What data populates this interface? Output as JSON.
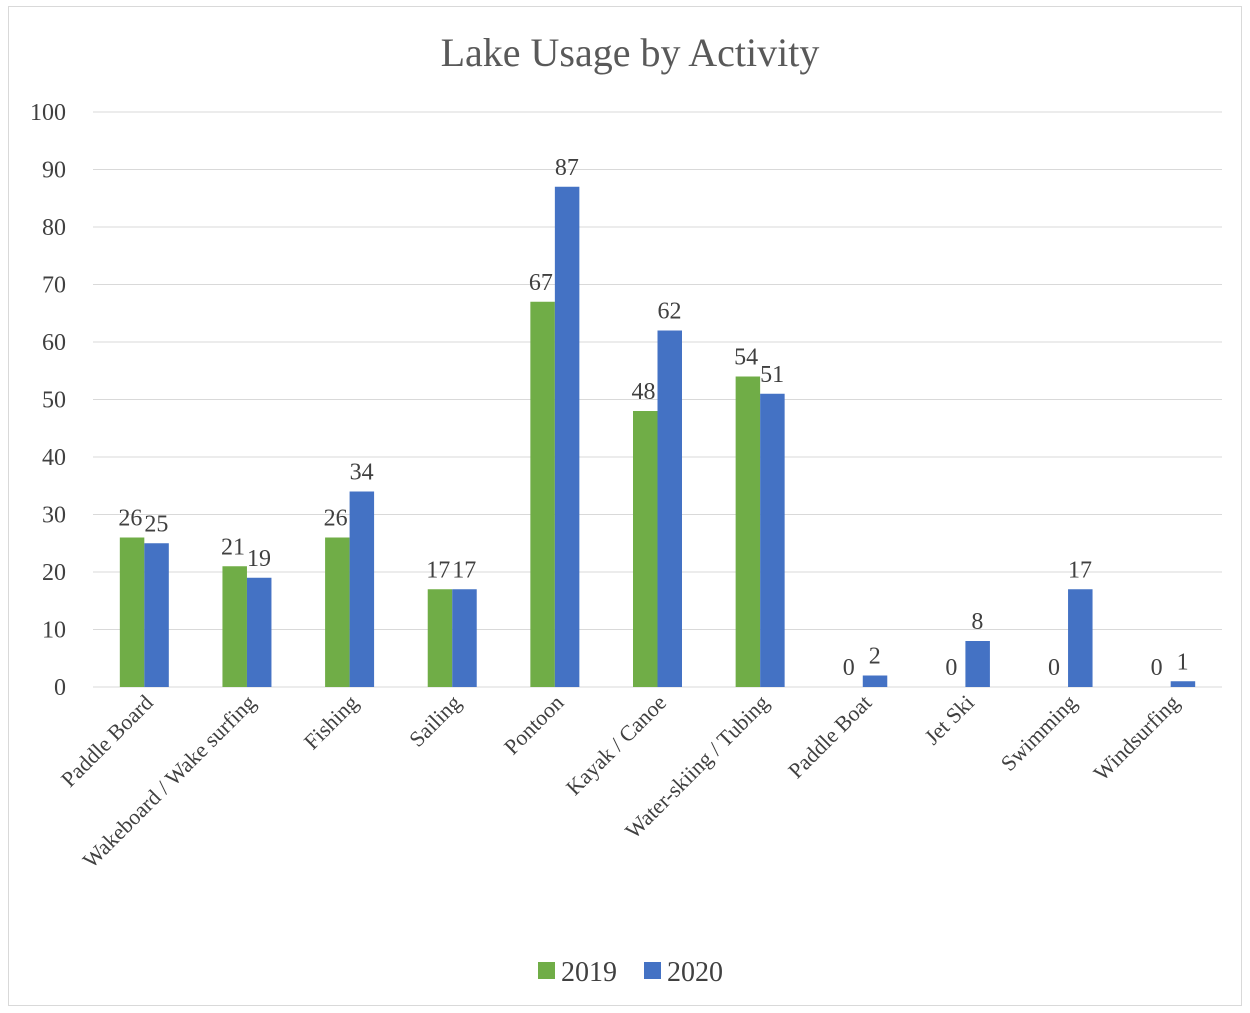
{
  "chart_data": {
    "type": "bar",
    "title": "Lake Usage by Activity",
    "categories": [
      "Paddle Board",
      "Wakeboard / Wake surfing",
      "Fishing",
      "Sailing",
      "Pontoon",
      "Kayak / Canoe",
      "Water-skiing / Tubing",
      "Paddle Boat",
      "Jet Ski",
      "Swimming",
      "Windsurfing"
    ],
    "series": [
      {
        "name": "2019",
        "color": "#70ad47",
        "values": [
          26,
          21,
          26,
          17,
          67,
          48,
          54,
          0,
          0,
          0,
          0
        ]
      },
      {
        "name": "2020",
        "color": "#4472c4",
        "values": [
          25,
          19,
          34,
          17,
          87,
          62,
          51,
          2,
          8,
          17,
          1
        ]
      }
    ],
    "ylim": [
      0,
      100
    ],
    "yticks": [
      0,
      10,
      20,
      30,
      40,
      50,
      60,
      70,
      80,
      90,
      100
    ],
    "grid": true,
    "legend_position": "bottom",
    "data_labels": true
  }
}
